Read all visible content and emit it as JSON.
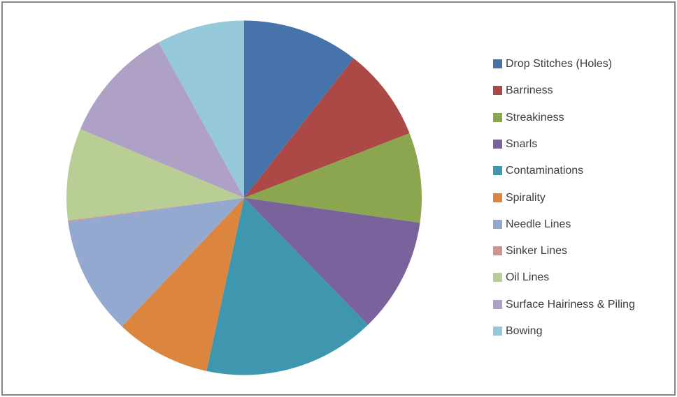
{
  "window": {
    "background_color": "#ffffff",
    "border_color": "#878787"
  },
  "chart_data": {
    "type": "pie",
    "title": "",
    "legend_position": "right",
    "start_angle_deg": 0,
    "direction": "clockwise",
    "grid": false,
    "slices": [
      {
        "label": "Drop Stitches (Holes)",
        "percent": 10.6,
        "color": "#4573AA"
      },
      {
        "label": "Barriness",
        "percent": 8.5,
        "color": "#AC4846"
      },
      {
        "label": "Streakiness",
        "percent": 8.2,
        "color": "#8BA64E"
      },
      {
        "label": "Snarls",
        "percent": 10.5,
        "color": "#7A639D"
      },
      {
        "label": "Contaminations",
        "percent": 15.7,
        "color": "#3E97AF"
      },
      {
        "label": "Spirality",
        "percent": 8.7,
        "color": "#DC853E"
      },
      {
        "label": "Needle Lines",
        "percent": 10.8,
        "color": "#93A9CF"
      },
      {
        "label": "Sinker Lines",
        "percent": 0.1,
        "color": "#D0918F"
      },
      {
        "label": "Oil Lines",
        "percent": 8.4,
        "color": "#B8CE95"
      },
      {
        "label": "Surface Hairiness & Piling",
        "percent": 10.7,
        "color": "#AFA1C5"
      },
      {
        "label": "Bowing",
        "percent": 8.0,
        "color": "#95C9D9"
      }
    ],
    "legend_text_color": "#3d3d3d"
  }
}
